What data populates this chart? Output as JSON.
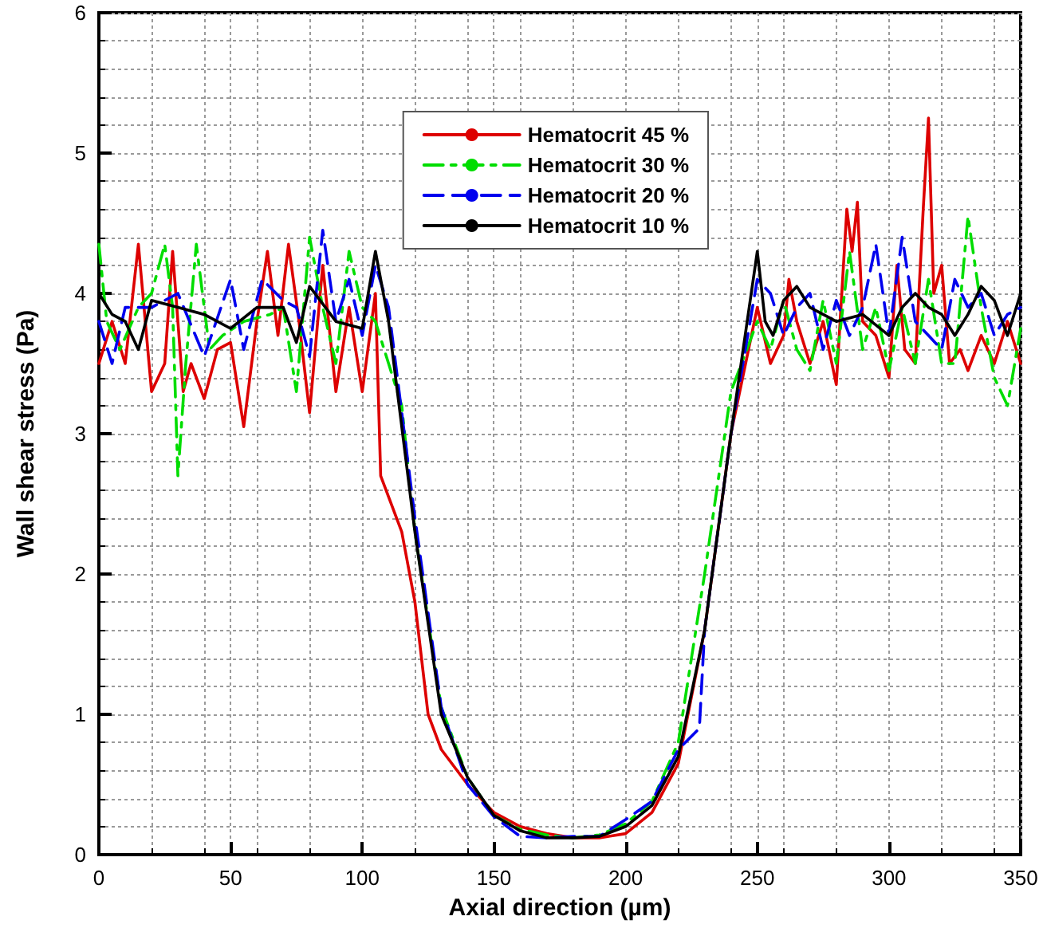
{
  "chart_data": {
    "type": "line",
    "xlabel": "Axial direction (µm)",
    "ylabel": "Wall shear stress (Pa)",
    "xlim": [
      0,
      350
    ],
    "xticks": [
      0,
      50,
      100,
      150,
      200,
      250,
      300,
      350
    ],
    "ylim": [
      0,
      6
    ],
    "yticks": [
      0,
      1,
      2,
      3,
      4,
      5,
      6
    ],
    "grid": true,
    "legend": "top right",
    "marker": "none",
    "series": [
      {
        "name": "Hematocrit 45 %",
        "color": "#dd0000",
        "line_style": "solid",
        "x": [
          0,
          5,
          10,
          15,
          20,
          25,
          28,
          32,
          35,
          40,
          45,
          50,
          55,
          60,
          64,
          68,
          72,
          76,
          80,
          85,
          90,
          95,
          100,
          105,
          107,
          115,
          120,
          125,
          130,
          140,
          150,
          160,
          170,
          180,
          190,
          200,
          210,
          220,
          230,
          240,
          250,
          255,
          260,
          262,
          265,
          270,
          275,
          280,
          284,
          286,
          288,
          290,
          295,
          300,
          303,
          306,
          310,
          313,
          315,
          317,
          320,
          323,
          327,
          330,
          335,
          340,
          345,
          350
        ],
        "values": [
          3.5,
          3.8,
          3.5,
          4.35,
          3.3,
          3.5,
          4.3,
          3.3,
          3.5,
          3.25,
          3.6,
          3.65,
          3.05,
          3.8,
          4.3,
          3.7,
          4.35,
          3.8,
          3.15,
          4.2,
          3.3,
          3.9,
          3.3,
          4.0,
          2.7,
          2.3,
          1.8,
          1.0,
          0.75,
          0.5,
          0.3,
          0.2,
          0.15,
          0.12,
          0.12,
          0.15,
          0.3,
          0.65,
          1.6,
          3.0,
          3.9,
          3.5,
          3.7,
          4.1,
          3.8,
          3.5,
          3.8,
          3.35,
          4.6,
          4.3,
          4.65,
          3.8,
          3.7,
          3.4,
          4.2,
          3.6,
          3.5,
          4.6,
          5.25,
          4.0,
          4.2,
          3.5,
          3.6,
          3.45,
          3.7,
          3.5,
          3.8,
          3.5
        ]
      },
      {
        "name": "Hematocrit 30 %",
        "color": "#00dd00",
        "line_style": "dashdot",
        "x": [
          0,
          3,
          8,
          15,
          20,
          25,
          28,
          30,
          33,
          37,
          42,
          47,
          55,
          65,
          70,
          75,
          80,
          85,
          90,
          95,
          100,
          105,
          110,
          115,
          120,
          130,
          140,
          150,
          160,
          170,
          180,
          190,
          200,
          210,
          220,
          230,
          240,
          250,
          255,
          260,
          265,
          270,
          275,
          280,
          285,
          290,
          295,
          300,
          305,
          310,
          315,
          320,
          325,
          330,
          335,
          340,
          345,
          350
        ],
        "values": [
          4.35,
          3.8,
          3.6,
          3.9,
          4.0,
          4.35,
          3.9,
          2.7,
          3.5,
          4.35,
          3.6,
          3.7,
          3.8,
          3.85,
          3.9,
          3.3,
          4.4,
          3.9,
          3.5,
          4.3,
          3.9,
          3.8,
          3.5,
          3.2,
          2.3,
          1.05,
          0.55,
          0.28,
          0.18,
          0.14,
          0.12,
          0.14,
          0.22,
          0.38,
          0.8,
          2.0,
          3.3,
          3.8,
          3.6,
          3.95,
          3.6,
          3.45,
          3.95,
          3.5,
          4.3,
          3.6,
          3.9,
          3.45,
          3.9,
          3.5,
          4.1,
          3.5,
          3.5,
          4.55,
          3.9,
          3.4,
          3.2,
          3.75
        ]
      },
      {
        "name": "Hematocrit 20 %",
        "color": "#0000ee",
        "line_style": "dashed",
        "x": [
          0,
          5,
          10,
          20,
          30,
          40,
          50,
          55,
          62,
          70,
          75,
          80,
          85,
          90,
          95,
          100,
          105,
          110,
          120,
          130,
          140,
          150,
          160,
          170,
          180,
          190,
          200,
          210,
          220,
          228,
          230,
          240,
          250,
          255,
          260,
          265,
          270,
          275,
          280,
          285,
          290,
          295,
          300,
          305,
          310,
          315,
          320,
          325,
          330,
          335,
          340,
          345,
          350
        ],
        "values": [
          3.8,
          3.5,
          3.9,
          3.9,
          4.0,
          3.55,
          4.1,
          3.6,
          4.1,
          3.95,
          3.9,
          3.55,
          4.45,
          3.8,
          4.1,
          3.7,
          4.2,
          3.9,
          2.4,
          1.05,
          0.5,
          0.27,
          0.13,
          0.12,
          0.13,
          0.13,
          0.25,
          0.38,
          0.75,
          0.9,
          1.6,
          3.0,
          4.1,
          4.0,
          3.7,
          3.9,
          4.0,
          3.6,
          3.95,
          3.7,
          3.9,
          4.35,
          3.7,
          4.4,
          3.8,
          3.7,
          3.6,
          4.1,
          3.9,
          4.0,
          3.7,
          3.85,
          3.9
        ]
      },
      {
        "name": "Hematocrit 10 %",
        "color": "#000000",
        "line_style": "solid",
        "x": [
          0,
          5,
          10,
          15,
          20,
          30,
          40,
          50,
          60,
          70,
          75,
          80,
          90,
          100,
          105,
          110,
          120,
          130,
          140,
          150,
          160,
          170,
          180,
          190,
          200,
          210,
          220,
          230,
          240,
          250,
          253,
          256,
          260,
          265,
          270,
          280,
          290,
          300,
          305,
          310,
          315,
          320,
          325,
          330,
          335,
          340,
          345,
          350
        ],
        "values": [
          4.0,
          3.85,
          3.8,
          3.6,
          3.95,
          3.9,
          3.85,
          3.75,
          3.9,
          3.9,
          3.65,
          4.05,
          3.8,
          3.75,
          4.3,
          3.8,
          2.3,
          1.0,
          0.55,
          0.28,
          0.17,
          0.12,
          0.12,
          0.13,
          0.2,
          0.35,
          0.7,
          1.6,
          3.0,
          4.3,
          3.8,
          3.7,
          3.95,
          4.05,
          3.9,
          3.8,
          3.85,
          3.7,
          3.9,
          4.0,
          3.9,
          3.85,
          3.7,
          3.85,
          4.05,
          3.95,
          3.7,
          4.0
        ]
      }
    ]
  }
}
